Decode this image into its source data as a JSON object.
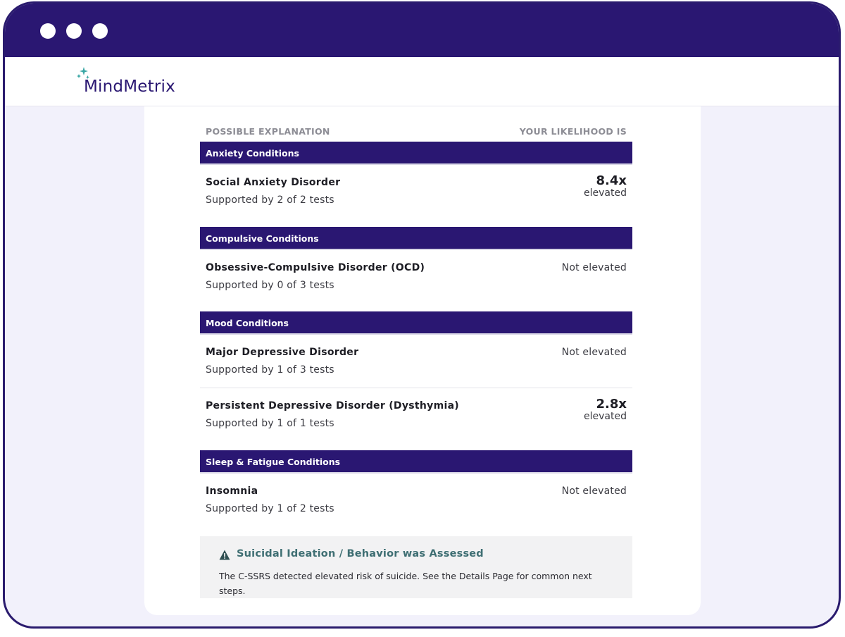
{
  "app": {
    "logo_text": "MindMetrix",
    "brand_color": "#2a1772",
    "accent_color": "#3aa7a5"
  },
  "table": {
    "header_left": "POSSIBLE EXPLANATION",
    "header_right": "YOUR LIKELIHOOD IS"
  },
  "sections": [
    {
      "title": "Anxiety Conditions",
      "rows": [
        {
          "name": "Social Anxiety Disorder",
          "support": "Supported by 2 of 2 tests",
          "value": "8.4x",
          "value_label": "elevated"
        }
      ]
    },
    {
      "title": "Compulsive Conditions",
      "rows": [
        {
          "name": "Obsessive-Compulsive Disorder (OCD)",
          "support": "Supported by 0 of 3 tests",
          "value_label": "Not elevated"
        }
      ]
    },
    {
      "title": "Mood Conditions",
      "rows": [
        {
          "name": "Major Depressive Disorder",
          "support": "Supported by 1 of 3 tests",
          "value_label": "Not elevated"
        },
        {
          "name": "Persistent Depressive Disorder (Dysthymia)",
          "support": "Supported by 1 of 1 tests",
          "value": "2.8x",
          "value_label": "elevated"
        }
      ]
    },
    {
      "title": "Sleep & Fatigue Conditions",
      "rows": [
        {
          "name": "Insomnia",
          "support": "Supported by 1 of 2 tests",
          "value_label": "Not elevated"
        }
      ]
    }
  ],
  "alert": {
    "icon": "warning-icon",
    "title": "Suicidal Ideation / Behavior was Assessed",
    "text": "The C-SSRS detected elevated risk of suicide. See the Details Page for common next steps."
  }
}
